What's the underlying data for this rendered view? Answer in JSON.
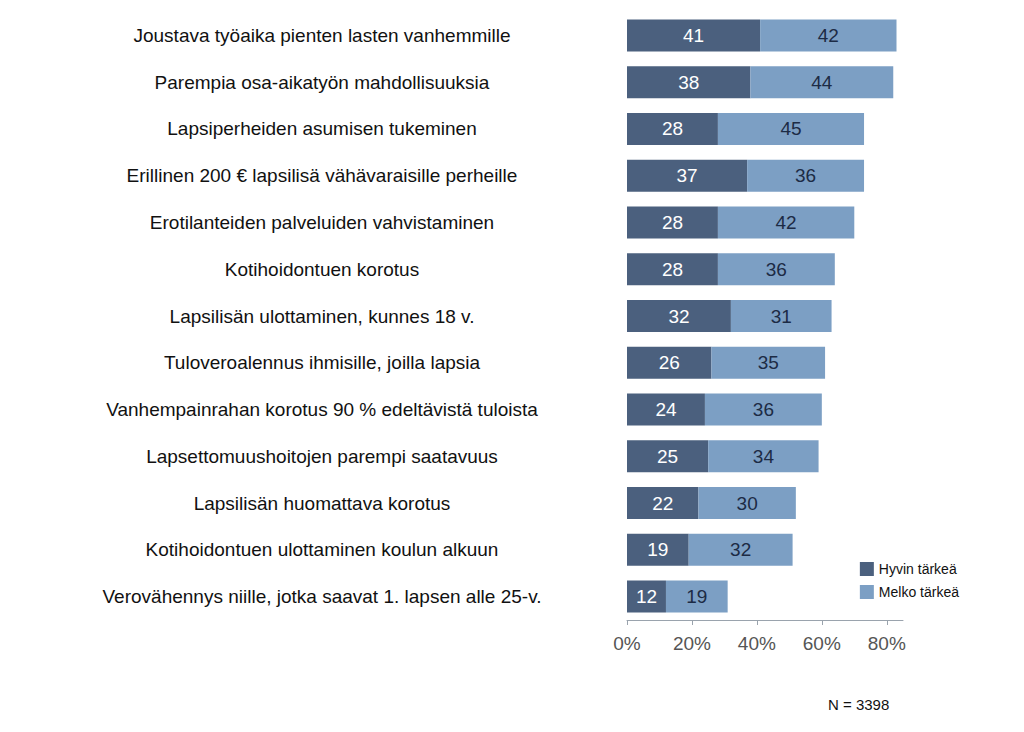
{
  "chart_data": {
    "type": "bar",
    "orientation": "horizontal",
    "stacked": true,
    "data_labels": true,
    "grid": false,
    "legend": "lower right",
    "categories": [
      "Joustava työaika pienten lasten vanhemmille",
      "Parempia osa-aikatyön mahdollisuuksia",
      "Lapsiperheiden asumisen tukeminen",
      "Erillinen 200 € lapsilisä vähävaraisille perheille",
      "Erotilanteiden palveluiden vahvistaminen",
      "Kotihoidontuen korotus",
      "Lapsilisän ulottaminen, kunnes 18 v.",
      "Tuloveroalennus ihmisille, joilla lapsia",
      "Vanhempainrahan korotus 90 % edeltävistä tuloista",
      "Lapsettomuushoitojen parempi saatavuus",
      "Lapsilisän huomattava korotus",
      "Kotihoidontuen ulottaminen koulun alkuun",
      "Verovähennys niille, jotka saavat 1. lapsen alle 25-v."
    ],
    "series": [
      {
        "name": "Hyvin tärkeä",
        "color": "#4b607e",
        "values": [
          41,
          38,
          28,
          37,
          28,
          28,
          32,
          26,
          24,
          25,
          22,
          19,
          12
        ]
      },
      {
        "name": "Melko tärkeä",
        "color": "#7c9fc4",
        "values": [
          42,
          44,
          45,
          36,
          42,
          36,
          31,
          35,
          36,
          34,
          30,
          32,
          19
        ]
      }
    ],
    "xlim": [
      0,
      85
    ],
    "xticks": [
      {
        "value": 0,
        "label": "0%"
      },
      {
        "value": 20,
        "label": "20%"
      },
      {
        "value": 40,
        "label": "40%"
      },
      {
        "value": 60,
        "label": "60%"
      },
      {
        "value": 80,
        "label": "80%"
      }
    ],
    "annotations": [
      "N = 3398"
    ]
  }
}
